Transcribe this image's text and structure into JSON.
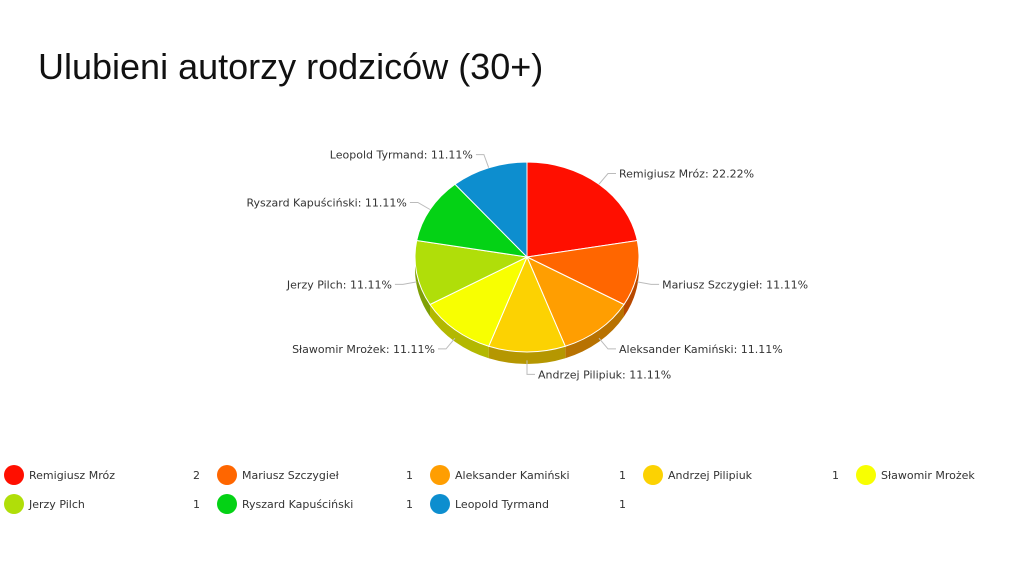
{
  "title": "Ulubieni autorzy rodziców (30+)",
  "chart_data": {
    "type": "pie",
    "style": "3d",
    "title": "Ulubieni autorzy rodziców (30+)",
    "label_format": "{name}: {percent}",
    "slices": [
      {
        "name": "Remigiusz Mróz",
        "value": 2,
        "percent": "22.22%",
        "color": "#FF0F00"
      },
      {
        "name": "Mariusz Szczygieł",
        "value": 1,
        "percent": "11.11%",
        "color": "#FF6600"
      },
      {
        "name": "Aleksander Kamiński",
        "value": 1,
        "percent": "11.11%",
        "color": "#FF9E01"
      },
      {
        "name": "Andrzej Pilipiuk",
        "value": 1,
        "percent": "11.11%",
        "color": "#FCD202"
      },
      {
        "name": "Sławomir Mrożek",
        "value": 1,
        "percent": "11.11%",
        "color": "#F8FF01"
      },
      {
        "name": "Jerzy Pilch",
        "value": 1,
        "percent": "11.11%",
        "color": "#B0DE09"
      },
      {
        "name": "Ryszard Kapuściński",
        "value": 1,
        "percent": "11.11%",
        "color": "#04D215"
      },
      {
        "name": "Leopold Tyrmand",
        "value": 1,
        "percent": "11.11%",
        "color": "#0D8ECF"
      }
    ],
    "legend_position": "bottom",
    "legend_shows_values": true
  }
}
